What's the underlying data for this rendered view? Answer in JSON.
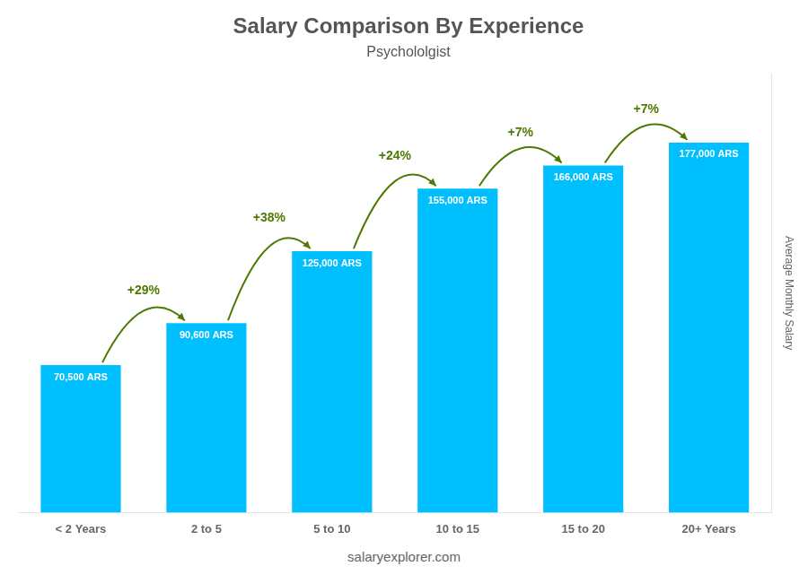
{
  "chart_data": {
    "type": "bar",
    "title": "Salary Comparison By Experience",
    "subtitle": "Psychololgist",
    "ylabel": "Average Monthly Salary",
    "footer": "salaryexplorer.com",
    "categories": [
      "< 2 Years",
      "2 to 5",
      "5 to 10",
      "10 to 15",
      "15 to 20",
      "20+ Years"
    ],
    "values": [
      70500,
      90600,
      125000,
      155000,
      166000,
      177000
    ],
    "value_labels": [
      "70,500 ARS",
      "90,600 ARS",
      "125,000 ARS",
      "155,000 ARS",
      "166,000 ARS",
      "177,000 ARS"
    ],
    "data_labels": true,
    "annotations": [
      "+29%",
      "+38%",
      "+24%",
      "+7%",
      "+7%"
    ],
    "color": "#00BFFF",
    "ylim": [
      0,
      210000
    ],
    "tick_labels": "x",
    "grid": false
  }
}
